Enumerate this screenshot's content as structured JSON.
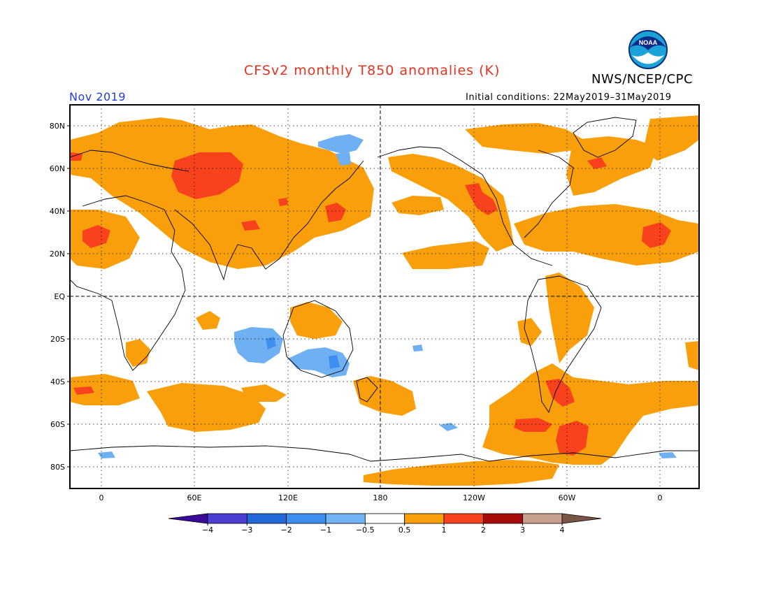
{
  "title": "CFSv2 monthly T850 anomalies (K)",
  "agency": "NWS/NCEP/CPC",
  "valid_period": "Nov 2019",
  "initial_conditions": "Initial conditions: 22May2019–31May2019",
  "logo_text": "NOAA",
  "colors": {
    "title": "#e8311e",
    "period": "#1f3fd6",
    "anom_pos_05_1": "#fa9f0c",
    "anom_pos_1_2": "#f7421d",
    "anom_pos_2_3": "#a80a0a",
    "anom_neg_05_1": "#6fb0f2",
    "anom_neg_1_2": "#3e8ef0"
  },
  "map": {
    "lat_labels": [
      "80N",
      "60N",
      "40N",
      "20N",
      "EQ",
      "20S",
      "40S",
      "60S",
      "80S"
    ],
    "lon_labels": [
      "0",
      "60E",
      "120E",
      "180",
      "120W",
      "60W",
      "0"
    ]
  },
  "colorbar": {
    "tick_labels": [
      "−4",
      "−3",
      "−2",
      "−1",
      "−0.5",
      "0.5",
      "1",
      "2",
      "3",
      "4"
    ],
    "bins": [
      {
        "range": "below -4",
        "color": "#3c0a9b"
      },
      {
        "range": "-4 to -3",
        "color": "#4b3ed2"
      },
      {
        "range": "-3 to -2",
        "color": "#2368d8"
      },
      {
        "range": "-2 to -1",
        "color": "#3e8ef0"
      },
      {
        "range": "-1 to -0.5",
        "color": "#72b4f4"
      },
      {
        "range": "-0.5 to 0.5",
        "color": "#ffffff"
      },
      {
        "range": "0.5 to 1",
        "color": "#fa9f0c"
      },
      {
        "range": "1 to 2",
        "color": "#f7421d"
      },
      {
        "range": "2 to 3",
        "color": "#a80a0a"
      },
      {
        "range": "3 to 4",
        "color": "#c9a08e"
      },
      {
        "range": "above 4",
        "color": "#7a5545"
      }
    ]
  }
}
